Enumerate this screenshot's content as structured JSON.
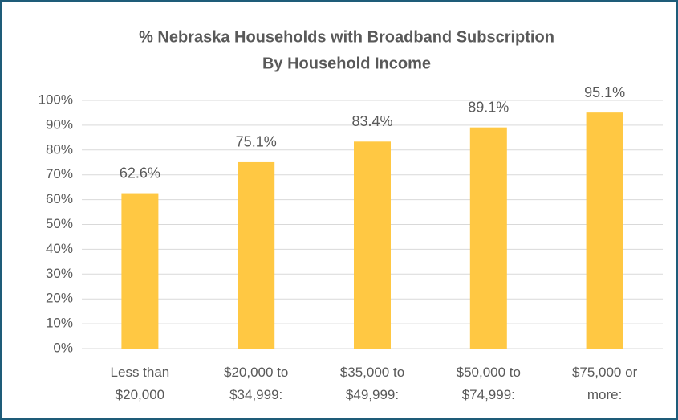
{
  "chart_data": {
    "type": "bar",
    "title": "% Nebraska Households with Broadband Subscription",
    "subtitle": "By Household Income",
    "categories": [
      "Less than\n$20,000",
      "$20,000 to\n$34,999:",
      "$35,000 to\n$49,999:",
      "$50,000 to\n$74,999:",
      "$75,000 or\nmore:"
    ],
    "values": [
      62.6,
      75.1,
      83.4,
      89.1,
      95.1
    ],
    "value_labels": [
      "62.6%",
      "75.1%",
      "83.4%",
      "89.1%",
      "95.1%"
    ],
    "color": "#ffc843",
    "ylim": [
      0,
      100
    ],
    "yticks": [
      {
        "value": 0,
        "label": "0%"
      },
      {
        "value": 10,
        "label": "10%"
      },
      {
        "value": 20,
        "label": "20%"
      },
      {
        "value": 30,
        "label": "30%"
      },
      {
        "value": 40,
        "label": "40%"
      },
      {
        "value": 50,
        "label": "50%"
      },
      {
        "value": 60,
        "label": "60%"
      },
      {
        "value": 70,
        "label": "70%"
      },
      {
        "value": 80,
        "label": "80%"
      },
      {
        "value": 90,
        "label": "90%"
      },
      {
        "value": 100,
        "label": "100%"
      }
    ],
    "grid": true
  }
}
